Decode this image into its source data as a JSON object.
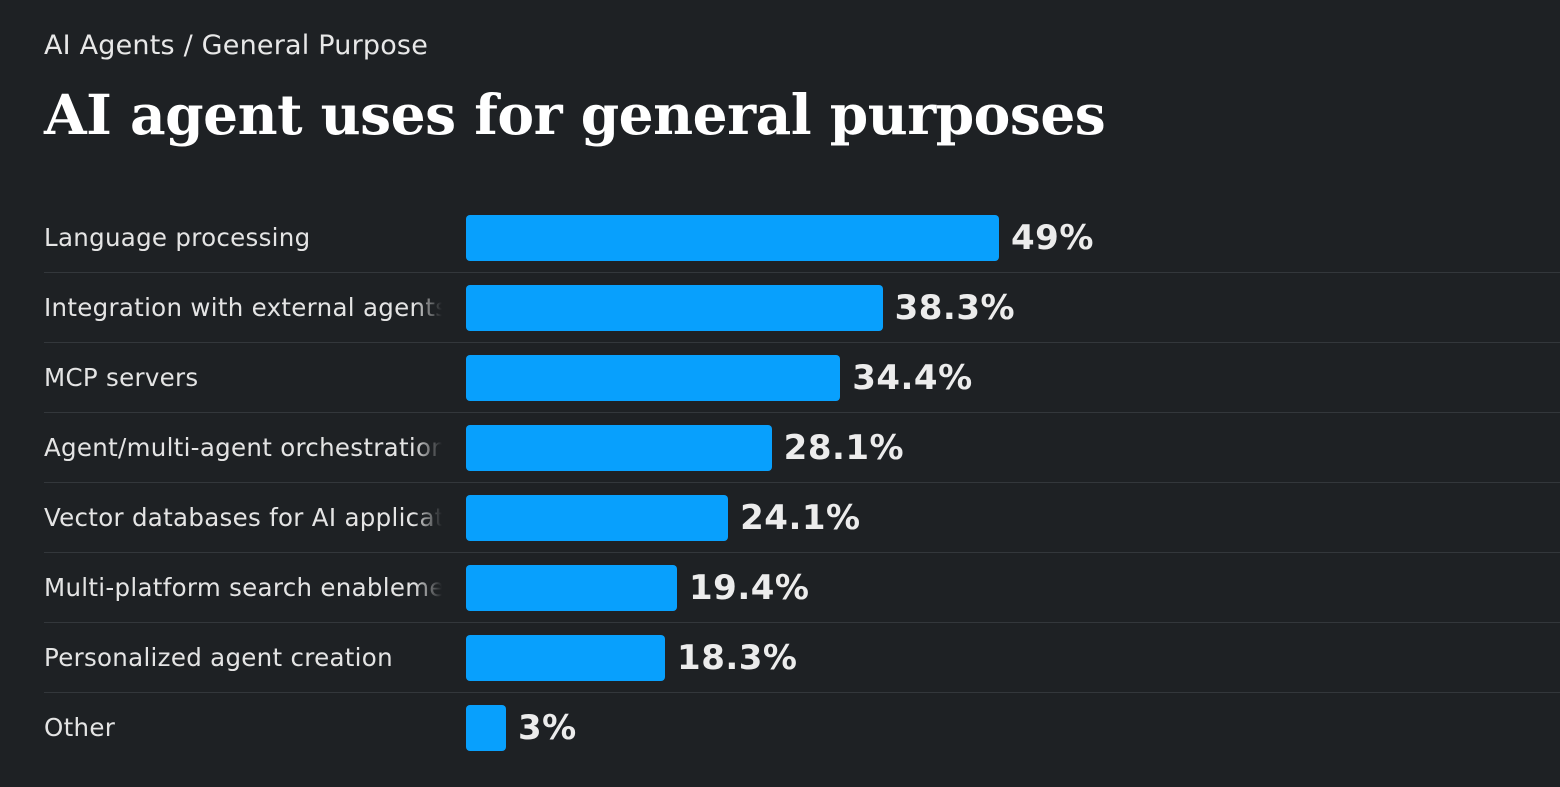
{
  "breadcrumb": "AI Agents / General Purpose",
  "title": "AI agent uses for general purposes",
  "colors": {
    "background": "#1e2124",
    "bar": "#08a0fd",
    "text": "#e4e4e4",
    "divider": "#33373b"
  },
  "chart_data": {
    "type": "bar",
    "orientation": "horizontal",
    "title": "AI agent uses for general purposes",
    "value_unit": "%",
    "xlim": [
      0,
      100
    ],
    "grid": false,
    "categories": [
      "Language processing",
      "Integration with external agents",
      "MCP servers",
      "Agent/multi-agent orchestration",
      "Vector databases for AI applications",
      "Multi-platform search enablement",
      "Personalized agent creation",
      "Other"
    ],
    "values": [
      49,
      38.3,
      34.4,
      28.1,
      24.1,
      19.4,
      18.3,
      3
    ],
    "value_labels": [
      "49%",
      "38.3%",
      "34.4%",
      "28.1%",
      "24.1%",
      "19.4%",
      "18.3%",
      "3%"
    ]
  }
}
